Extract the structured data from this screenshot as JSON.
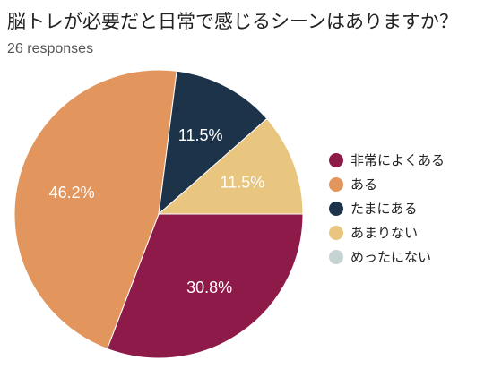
{
  "title": "脳トレが必要だと日常で感じるシーンはありますか？",
  "subtitle": "26 responses",
  "colors": {
    "very_often": "#8e1a4a",
    "sometimes": "#e2955c",
    "occasionally": "#1c334a",
    "rarely": "#e9c67f",
    "never": "#c5d3d3"
  },
  "chart_data": {
    "type": "pie",
    "title": "脳トレが必要だと日常で感じるシーンはありますか？",
    "total_responses": 26,
    "legend_position": "right",
    "slices": [
      {
        "label": "非常によくある",
        "value": 30.8,
        "label_text": "30.8%",
        "color": "#8e1a4a",
        "label_color": "#ffffff"
      },
      {
        "label": "ある",
        "value": 46.2,
        "label_text": "46.2%",
        "color": "#e2955c",
        "label_color": "#ffffff"
      },
      {
        "label": "たまにある",
        "value": 11.5,
        "label_text": "11.5%",
        "color": "#1c334a",
        "label_color": "#ffffff"
      },
      {
        "label": "あまりない",
        "value": 11.5,
        "label_text": "11.5%",
        "color": "#e9c67f",
        "label_color": "#ffffff"
      },
      {
        "label": "めったにない",
        "value": 0,
        "label_text": "",
        "color": "#c5d3d3",
        "label_color": "#ffffff"
      }
    ]
  }
}
